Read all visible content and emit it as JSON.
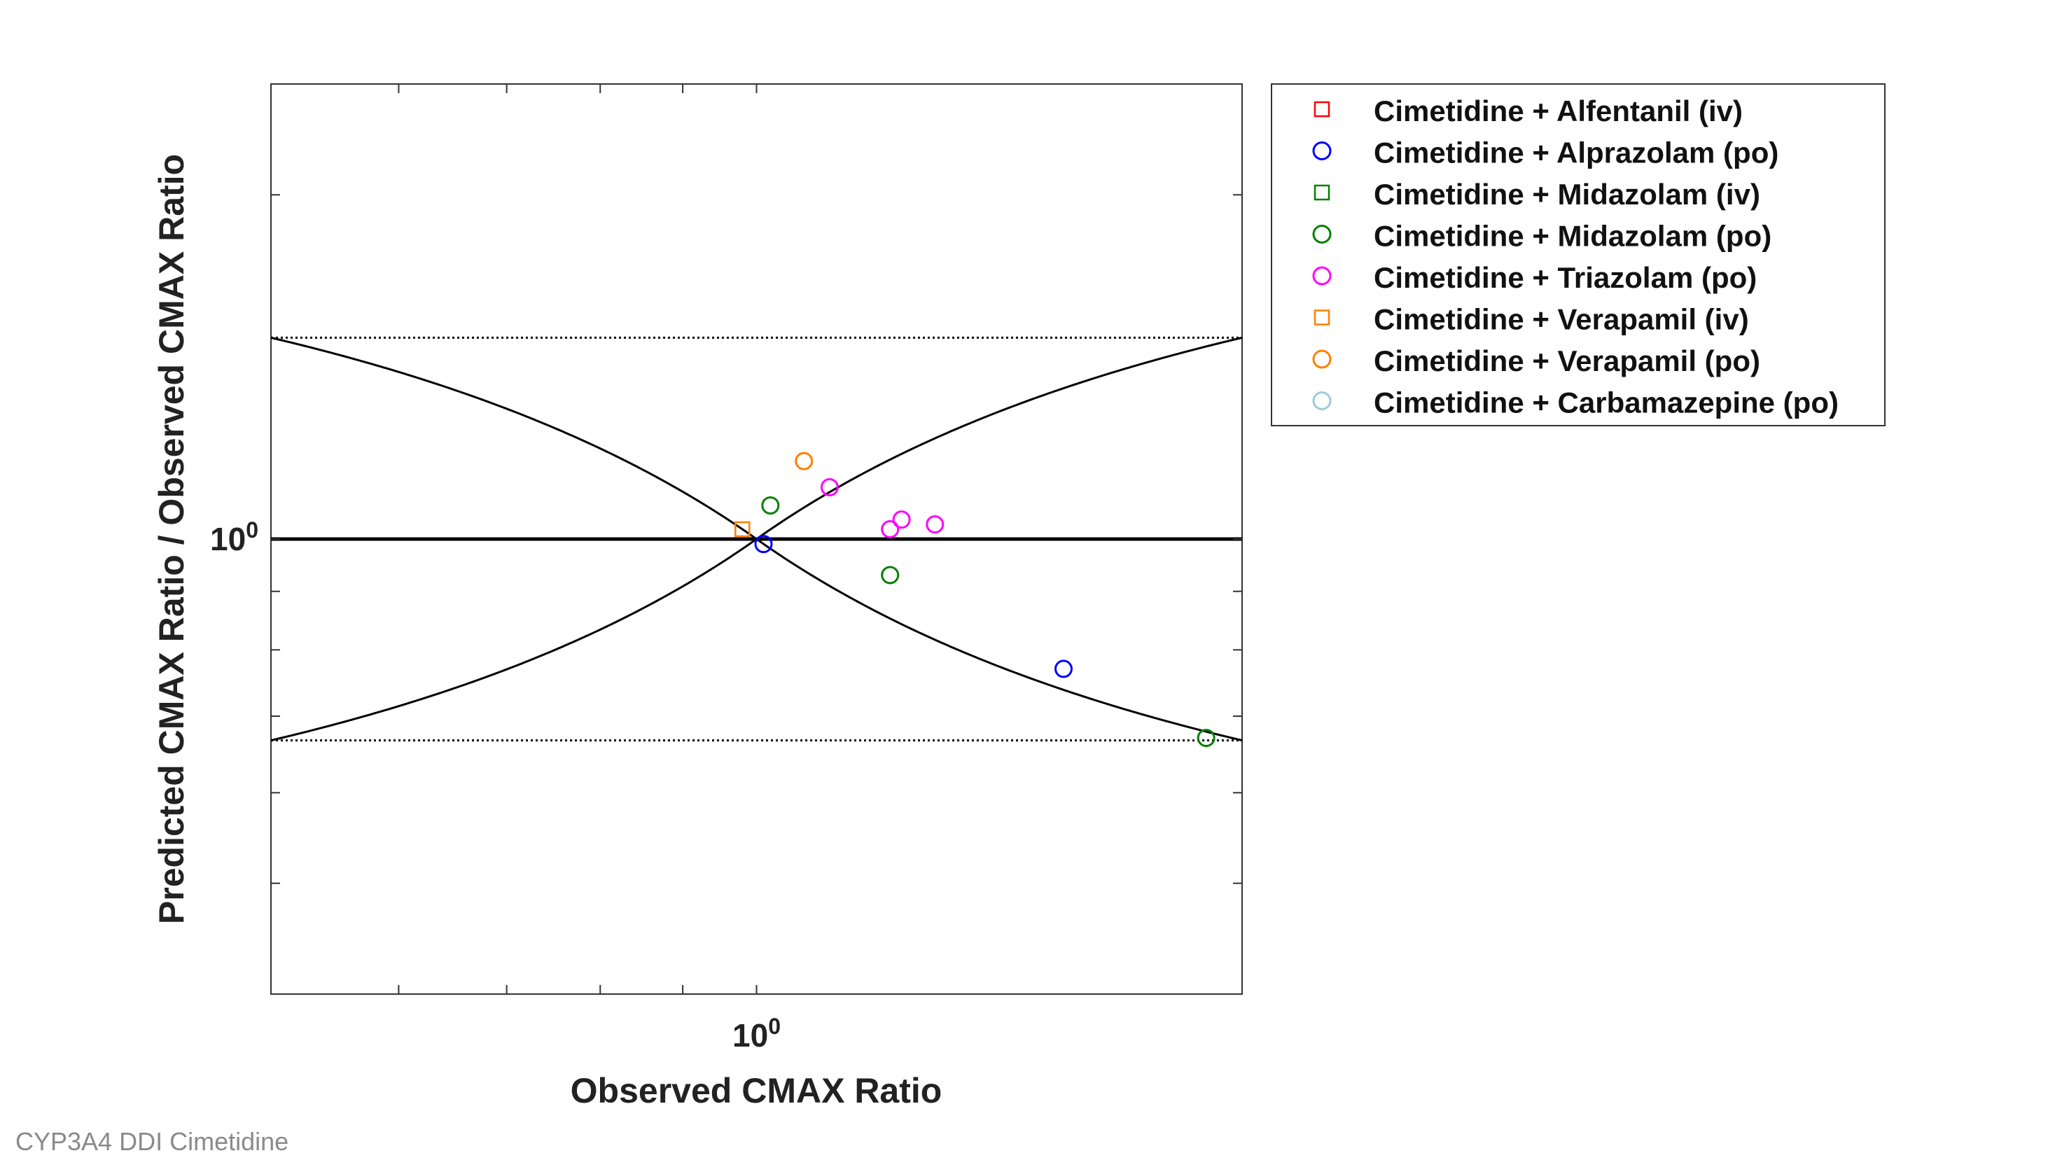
{
  "footer": "CYP3A4 DDI Cimetidine",
  "chart_data": {
    "type": "scatter",
    "xlabel": "Observed CMAX Ratio",
    "ylabel": "Predicted CMAX Ratio / Observed CMAX Ratio",
    "xscale": "log",
    "yscale": "log",
    "xlim": [
      0.5,
      2.0
    ],
    "ylim": [
      0.4,
      2.5
    ],
    "xticks": [
      {
        "value": 1,
        "base": "10",
        "exp": "0"
      }
    ],
    "yticks": [
      {
        "value": 1,
        "base": "10",
        "exp": "0"
      }
    ],
    "grid": false,
    "legend_position": "outside-top-right",
    "reference_lines": {
      "unity": 1.0,
      "upper_limit": 1.5,
      "lower_limit": 0.6667,
      "guest_limit_delta": 1
    },
    "series": [
      {
        "name": "Cimetidine + Alfentanil (iv)",
        "marker": "square",
        "color": "#ff0000",
        "x": [],
        "y": []
      },
      {
        "name": "Cimetidine + Alprazolam (po)",
        "marker": "circle",
        "color": "#0000ff",
        "x": [
          1.01,
          1.55
        ],
        "y": [
          0.99,
          0.77
        ]
      },
      {
        "name": "Cimetidine + Midazolam (iv)",
        "marker": "square",
        "color": "#008000",
        "x": [],
        "y": []
      },
      {
        "name": "Cimetidine + Midazolam (po)",
        "marker": "circle",
        "color": "#008000",
        "x": [
          1.02,
          1.21,
          1.9
        ],
        "y": [
          1.07,
          0.93,
          0.67
        ]
      },
      {
        "name": "Cimetidine + Triazolam (po)",
        "marker": "circle",
        "color": "#ff00ff",
        "x": [
          1.11,
          1.21,
          1.23,
          1.29
        ],
        "y": [
          1.11,
          1.02,
          1.04,
          1.03
        ]
      },
      {
        "name": "Cimetidine + Verapamil (iv)",
        "marker": "square",
        "color": "#ff7f00",
        "x": [
          0.98
        ],
        "y": [
          1.02
        ]
      },
      {
        "name": "Cimetidine + Verapamil (po)",
        "marker": "circle",
        "color": "#ff7f00",
        "x": [
          1.07
        ],
        "y": [
          1.17
        ]
      },
      {
        "name": "Cimetidine + Carbamazepine (po)",
        "marker": "circle",
        "color": "#9ecae1",
        "x": [],
        "y": []
      }
    ]
  }
}
